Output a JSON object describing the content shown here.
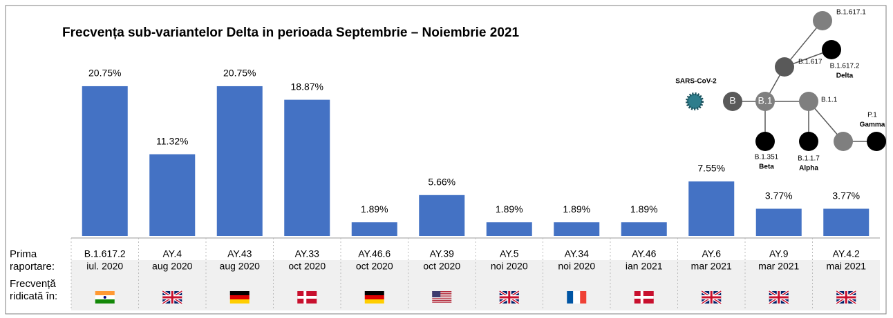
{
  "chart_data": {
    "type": "bar",
    "title": "Frecvența sub-variantelor Delta in perioada Septembrie – Noiembrie 2021",
    "categories": [
      "B.1.617.2",
      "AY.4",
      "AY.43",
      "AY.33",
      "AY.46.6",
      "AY.39",
      "AY.5",
      "AY.34",
      "AY.46",
      "AY.6",
      "AY.9",
      "AY.4.2"
    ],
    "first_report": [
      "iul. 2020",
      "aug 2020",
      "aug 2020",
      "oct 2020",
      "oct 2020",
      "oct 2020",
      "noi 2020",
      "noi 2020",
      "ian 2021",
      "mar 2021",
      "mar 2021",
      "mai 2021"
    ],
    "values": [
      20.75,
      11.32,
      20.75,
      18.87,
      1.89,
      5.66,
      1.89,
      1.89,
      1.89,
      7.55,
      3.77,
      3.77
    ],
    "value_labels": [
      "20.75%",
      "11.32%",
      "20.75%",
      "18.87%",
      "1.89%",
      "5.66%",
      "1.89%",
      "1.89%",
      "1.89%",
      "7.55%",
      "3.77%",
      "3.77%"
    ],
    "color": "#4472c4",
    "row_labels": {
      "first_report": [
        "Prima",
        "raportare:"
      ],
      "high_frequency": [
        "Frecvență",
        "ridicată în:"
      ]
    }
  },
  "diagram": {
    "nodes": [
      {
        "label": [
          "SARS-CoV-2"
        ]
      },
      {
        "label": [
          "B"
        ]
      },
      {
        "label": [
          "B.1"
        ]
      },
      {
        "label": [
          "B.1.617"
        ]
      },
      {
        "label": [
          "B.1.617.1"
        ]
      },
      {
        "label": [
          "B.1.617.2",
          "Delta"
        ]
      },
      {
        "label": [
          "B.1.1"
        ]
      },
      {
        "label": [
          "B.1.351",
          "Beta"
        ]
      },
      {
        "label": [
          "B.1.1.7",
          "Alpha"
        ]
      },
      {
        "label": [
          "P.1",
          "Gamma"
        ]
      }
    ]
  }
}
